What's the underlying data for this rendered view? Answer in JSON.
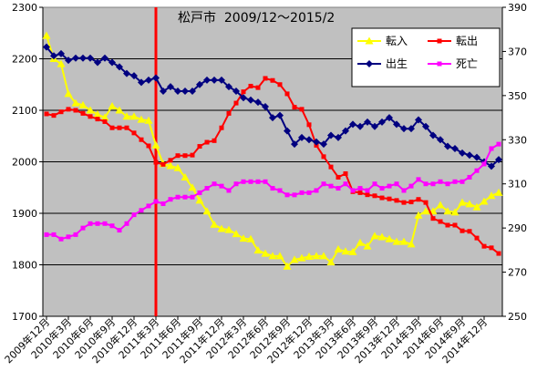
{
  "chart_data": {
    "type": "line",
    "title": "松戸市  2009/12～2015/2",
    "x_tick_labels": [
      "2009年12月",
      "2010年3月",
      "2010年6月",
      "2010年9月",
      "2010年12月",
      "2011年3月",
      "2011年6月",
      "2011年9月",
      "2011年12月",
      "2012年3月",
      "2012年6月",
      "2012年9月",
      "2012年12月",
      "2013年3月",
      "2013年6月",
      "2013年9月",
      "2013年12月",
      "2014年3月",
      "2014年6月",
      "2014年9月",
      "2014年12月"
    ],
    "y_axis_left": {
      "min": 1700,
      "max": 2300,
      "ticks": [
        1700,
        1800,
        1900,
        2000,
        2100,
        2200,
        2300
      ]
    },
    "y_axis_right": {
      "min": 250,
      "max": 390,
      "ticks": [
        250,
        270,
        290,
        310,
        330,
        350,
        370,
        390
      ]
    },
    "series": [
      {
        "name": "転入",
        "axis": "left",
        "color": "#ffff00",
        "marker": "triangle",
        "values": [
          2245,
          2200,
          2190,
          2132,
          2114,
          2110,
          2100,
          2092,
          2086,
          2108,
          2100,
          2088,
          2088,
          2082,
          2080,
          2032,
          1996,
          1992,
          1988,
          1970,
          1950,
          1925,
          1904,
          1878,
          1870,
          1868,
          1860,
          1851,
          1850,
          1828,
          1822,
          1817,
          1817,
          1797,
          1810,
          1813,
          1816,
          1817,
          1817,
          1805,
          1830,
          1826,
          1825,
          1843,
          1836,
          1856,
          1854,
          1850,
          1845,
          1845,
          1840,
          1896,
          1904,
          1904,
          1916,
          1904,
          1902,
          1921,
          1918,
          1912,
          1923,
          1934,
          1940
        ]
      },
      {
        "name": "転出",
        "axis": "left",
        "color": "#ff0000",
        "marker": "square",
        "values": [
          2093,
          2090,
          2097,
          2102,
          2100,
          2094,
          2088,
          2083,
          2078,
          2066,
          2066,
          2066,
          2056,
          2043,
          2031,
          1999,
          1995,
          2003,
          2012,
          2012,
          2013,
          2030,
          2038,
          2041,
          2066,
          2094,
          2114,
          2136,
          2147,
          2144,
          2162,
          2158,
          2150,
          2132,
          2106,
          2102,
          2072,
          2032,
          2010,
          1990,
          1970,
          1977,
          1942,
          1940,
          1936,
          1934,
          1930,
          1928,
          1925,
          1921,
          1922,
          1927,
          1921,
          1890,
          1884,
          1877,
          1877,
          1866,
          1865,
          1852,
          1836,
          1833,
          1822
        ]
      },
      {
        "name": "出生",
        "axis": "right",
        "color": "#000080",
        "marker": "diamond",
        "values": [
          372,
          368,
          369,
          366,
          367,
          367,
          367,
          365,
          367,
          365,
          363,
          360,
          359,
          356,
          357,
          358,
          352,
          354,
          352,
          352,
          352,
          355,
          357,
          357,
          357,
          354,
          352,
          349,
          348,
          347,
          345,
          340,
          341,
          334,
          328,
          331,
          330,
          329,
          328,
          332,
          331,
          334,
          337,
          336,
          338,
          336,
          338,
          340,
          337,
          335,
          335,
          339,
          336,
          332,
          330,
          327,
          326,
          324,
          323,
          322,
          320,
          318,
          321
        ]
      },
      {
        "name": "死亡",
        "axis": "right",
        "color": "#ff00ff",
        "marker": "square",
        "values": [
          287,
          287,
          285,
          286,
          287,
          290,
          292,
          292,
          292,
          291,
          289,
          292,
          296,
          298,
          300,
          302,
          301,
          303,
          304,
          304,
          304,
          306,
          308,
          310,
          309,
          307,
          310,
          311,
          311,
          311,
          311,
          308,
          307,
          305,
          305,
          306,
          306,
          307,
          310,
          309,
          308,
          310,
          307,
          308,
          307,
          310,
          308,
          309,
          310,
          307,
          309,
          312,
          310,
          310,
          311,
          310,
          311,
          311,
          313,
          316,
          319,
          326,
          328
        ]
      }
    ],
    "reference_line": {
      "x": "2011年3月",
      "color": "#ff0000"
    },
    "plot_background": "#c0c0c0",
    "grid": {
      "horizontal": true,
      "vertical": false
    },
    "legend_position": "top-right"
  }
}
